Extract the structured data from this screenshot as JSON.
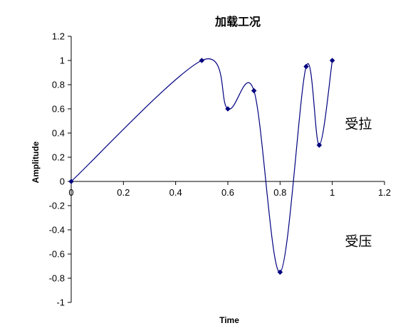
{
  "chart_data": {
    "type": "line",
    "title": "加载工况",
    "xlabel": "Time",
    "ylabel": "Amplitude",
    "xlim": [
      0,
      1.2
    ],
    "ylim": [
      -1,
      1.2
    ],
    "x_ticks": [
      0,
      0.2,
      0.4,
      0.6,
      0.8,
      1,
      1.2
    ],
    "y_ticks": [
      -1,
      -0.8,
      -0.6,
      -0.4,
      -0.2,
      0,
      0.2,
      0.4,
      0.6,
      0.8,
      1,
      1.2
    ],
    "grid": false,
    "series": [
      {
        "x": [
          0,
          0.5,
          0.6,
          0.7,
          0.8,
          0.9,
          0.95,
          1.0
        ],
        "y": [
          0,
          1,
          0.6,
          0.75,
          -0.75,
          0.95,
          0.3,
          1
        ],
        "color": "#000080",
        "smoothed": true,
        "marker": "diamond"
      }
    ],
    "annotations": [
      {
        "text": "受拉",
        "x": 1.1,
        "y": 0.48
      },
      {
        "text": "受压",
        "x": 1.1,
        "y": -0.49
      }
    ]
  }
}
